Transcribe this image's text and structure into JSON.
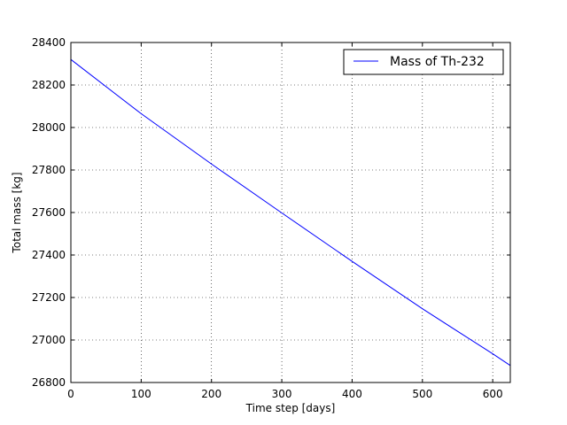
{
  "chart_data": {
    "type": "line",
    "title": "",
    "xlabel": "Time step [days]",
    "ylabel": "Total mass [kg]",
    "xlim": [
      0,
      625
    ],
    "ylim": [
      26800,
      28400
    ],
    "xticks": [
      0,
      100,
      200,
      300,
      400,
      500,
      600
    ],
    "yticks": [
      26800,
      27000,
      27200,
      27400,
      27600,
      27800,
      28000,
      28200,
      28400
    ],
    "grid": true,
    "legend_position": "top-right",
    "series": [
      {
        "name": "Mass of Th-232",
        "color": "#0000ff",
        "x": [
          0,
          100,
          200,
          300,
          400,
          500,
          600,
          625
        ],
        "y": [
          28320,
          28065,
          27828,
          27598,
          27370,
          27147,
          26935,
          26880
        ]
      }
    ]
  }
}
